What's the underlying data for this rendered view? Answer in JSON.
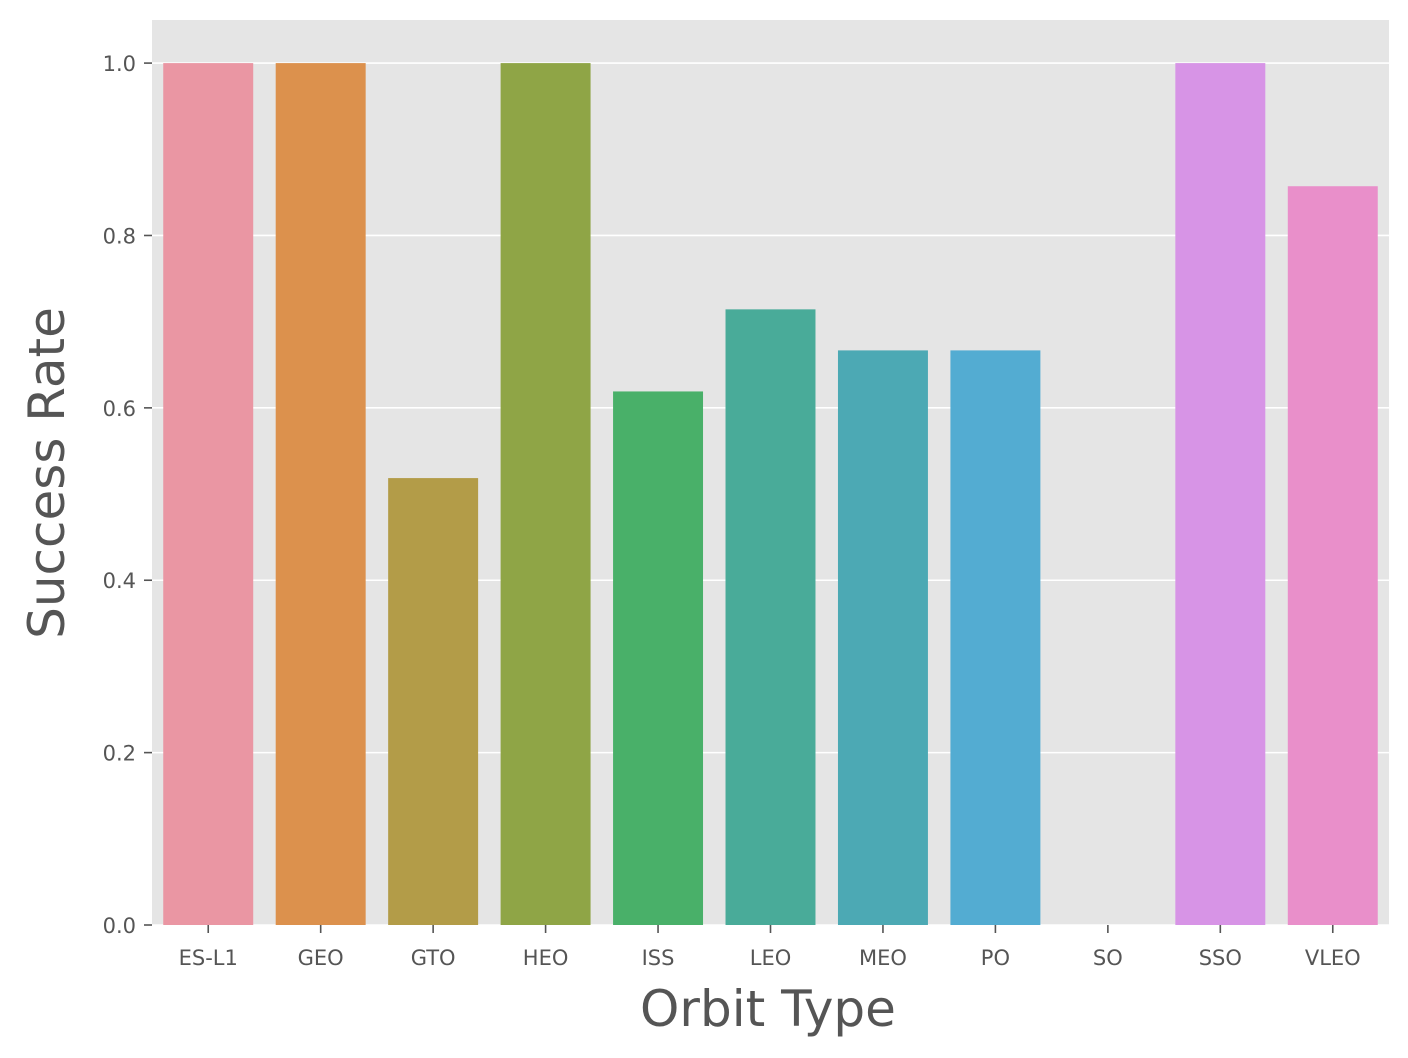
{
  "chart_data": {
    "type": "bar",
    "title": "",
    "xlabel": "Orbit Type",
    "ylabel": "Success Rate",
    "ylim": [
      0,
      1.05
    ],
    "yticks": [
      0.0,
      0.2,
      0.4,
      0.6,
      0.8,
      1.0
    ],
    "ytick_labels": [
      "0.0",
      "0.2",
      "0.4",
      "0.6",
      "0.8",
      "1.0"
    ],
    "grid": true,
    "legend": "none",
    "background_color": "#e5e5e5",
    "categories": [
      "ES-L1",
      "GEO",
      "GTO",
      "HEO",
      "ISS",
      "LEO",
      "MEO",
      "PO",
      "SO",
      "SSO",
      "VLEO"
    ],
    "values": [
      1.0,
      1.0,
      0.518519,
      1.0,
      0.619048,
      0.714286,
      0.666667,
      0.666667,
      0.0,
      1.0,
      0.857143
    ],
    "colors": [
      "#ea96a3",
      "#dc914d",
      "#b39c48",
      "#8fa546",
      "#49b069",
      "#49ab99",
      "#4ca9b4",
      "#53acd2",
      "#a5a8f1",
      "#d794e6",
      "#e98fca"
    ]
  }
}
